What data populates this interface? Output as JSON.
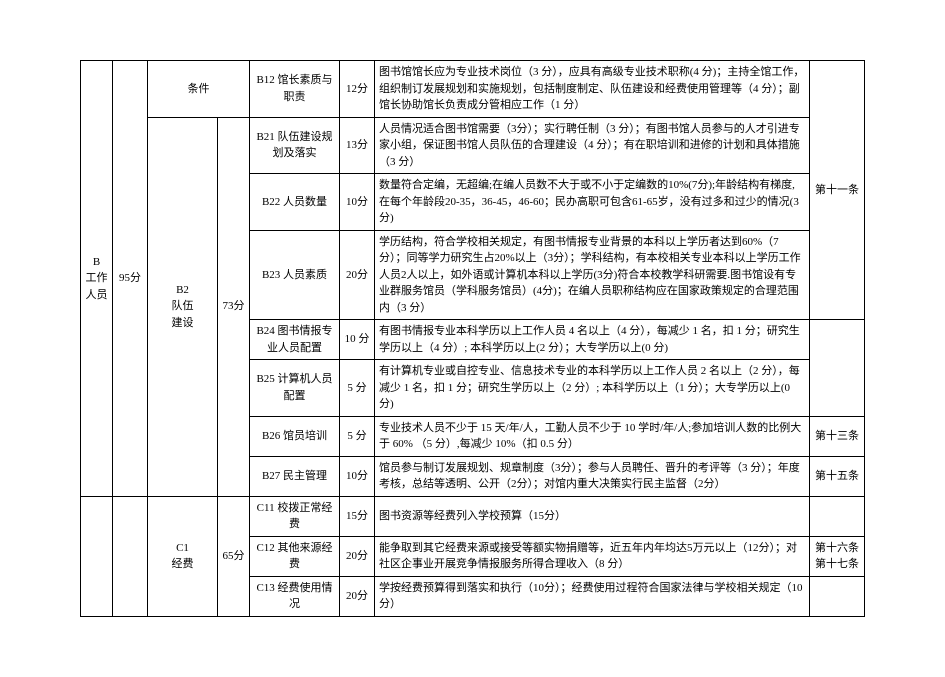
{
  "sectionB": {
    "label": "B\n工作\n人员",
    "score": "95分",
    "topRow": {
      "condition": "条件",
      "code": "B12 馆长素质与职责",
      "pts": "12分",
      "desc": "图书馆馆长应为专业技术岗位（3 分），应具有高级专业技术职称(4 分)；主持全馆工作，组织制订发展规划和实施规划，包括制度制定、队伍建设和经费使用管理等（4 分）；副馆长协助馆长负责成分管相应工作（1 分）"
    },
    "b2": {
      "label": "B2\n队伍\n建设",
      "score": "73分",
      "rows": [
        {
          "code": "B21 队伍建设规划及落实",
          "pts": "13分",
          "desc": "人员情况适合图书馆需要（3分）；实行聘任制（3 分）；有图书馆人员参与的人才引进专家小组，保证图书馆人员队伍的合理建设（4 分）；有在职培训和进修的计划和具体措施（3 分）",
          "ref": ""
        },
        {
          "code": "B22 人员数量",
          "pts": "10分",
          "desc": "数量符合定编，无超编;在编人员数不大于或不小于定编数的10%(7分);年龄结构有梯度,在每个年龄段20-35，36-45，46-60；民办高职可包含61-65岁，没有过多和过少的情况(3分)",
          "ref": "第十一条"
        },
        {
          "code": "B23 人员素质",
          "pts": "20分",
          "desc": "学历结构，符合学校相关规定，有图书情报专业背景的本科以上学历者达到60%（7分）；同等学力研究生占20%以上（3分）；学科结构，有本校相关专业本科以上学历工作人员2人以上，如外语或计算机本科以上学历(3分)符合本校教学科研需要.图书馆设有专业群服务馆员（学科服务馆员）(4分)；在编人员职称结构应在国家政策规定的合理范围内（3 分）",
          "ref": ""
        },
        {
          "code": "B24 图书情报专业人员配置",
          "pts": "10 分",
          "desc": "有图书情报专业本科学历以上工作人员 4 名以上（4 分），每减少 1 名，扣 1 分；研究生学历以上（4 分）; 本科学历以上(2 分）；大专学历以上(0 分)",
          "ref": ""
        },
        {
          "code": "B25 计算机人员配置",
          "pts": "5 分",
          "desc": "有计算机专业或自控专业、信息技术专业的本科学历以上工作人员 2 名以上（2 分），每减少 1 名，扣 1 分；研究生学历以上（2 分）; 本科学历以上（1 分）；大专学历以上(0 分)",
          "ref": ""
        },
        {
          "code": "B26 馆员培训",
          "pts": "5 分",
          "desc": "专业技术人员不少于 15 天/年/人，工勤人员不少于 10 学时/年/人;参加培训人数的比例大于 60% （5 分）,每减少 10%（扣 0.5 分）",
          "ref": "第十三条"
        },
        {
          "code": "B27 民主管理",
          "pts": "10分",
          "desc": "馆员参与制订发展规划、规章制度（3分）；参与人员聘任、晋升的考评等（3 分）；年度考核，总结等透明、公开（2分）；对馆内重大决策实行民主监督（2分）",
          "ref": "第十五条"
        }
      ]
    }
  },
  "sectionC": {
    "c1": {
      "label": "C1\n经费",
      "score": "65分",
      "rows": [
        {
          "code": "C11 校拨正常经费",
          "pts": "15分",
          "desc": "图书资源等经费列入学校预算（15分）",
          "ref": ""
        },
        {
          "code": "C12 其他来源经费",
          "pts": "20分",
          "desc": "能争取到其它经费来源或接受等额实物捐赠等，近五年内年均达5万元以上（12分）；对社区企事业开展竞争情报服务所得合理收入（8 分）",
          "ref": "第十六条\n第十七条"
        },
        {
          "code": "C13 经费使用情况",
          "pts": "20分",
          "desc": "学按经费预算得到落实和执行（10分）；经费使用过程符合国家法律与学校相关规定（10分）",
          "ref": ""
        }
      ]
    }
  }
}
